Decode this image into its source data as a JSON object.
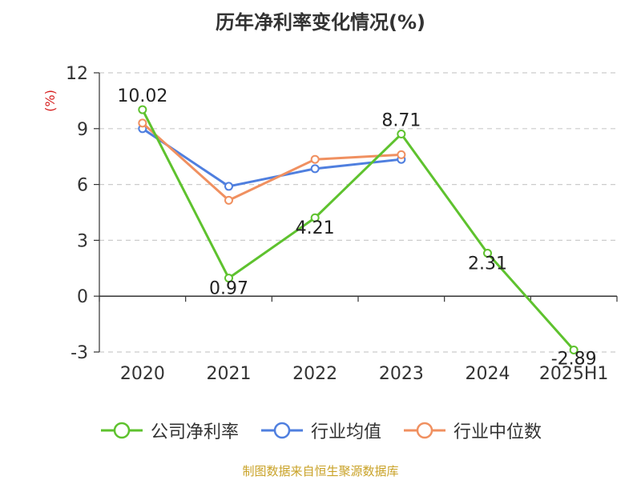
{
  "chart_data": {
    "type": "line",
    "title": "历年净利率变化情况(%)",
    "ylabel": "(%)",
    "xlabel": "",
    "categories": [
      "2020",
      "2021",
      "2022",
      "2023",
      "2024",
      "2025H1"
    ],
    "yticks": [
      -3,
      0,
      3,
      6,
      9,
      12
    ],
    "ylim": [
      -3,
      12
    ],
    "grid": true,
    "legend_position": "bottom",
    "series": [
      {
        "name": "公司净利率",
        "color": "#5ec22e",
        "values": [
          10.02,
          0.97,
          4.21,
          8.71,
          2.31,
          -2.89
        ],
        "labels": [
          "10.02",
          "0.97",
          "4.21",
          "8.71",
          "2.31",
          "-2.89"
        ]
      },
      {
        "name": "行业均值",
        "color": "#4f7fdf",
        "values": [
          9.0,
          5.9,
          6.85,
          7.35,
          null,
          null
        ]
      },
      {
        "name": "行业中位数",
        "color": "#f09060",
        "values": [
          9.3,
          5.15,
          7.35,
          7.6,
          null,
          null
        ]
      }
    ]
  },
  "footer": {
    "source": "制图数据来自恒生聚源数据库"
  }
}
